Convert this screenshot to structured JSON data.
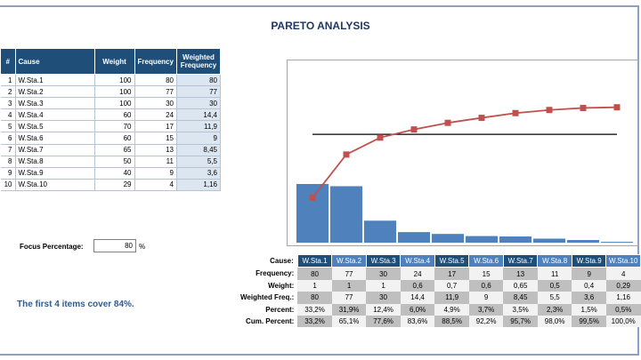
{
  "title": "PARETO ANALYSIS",
  "table": {
    "headers": [
      "#",
      "Cause",
      "Weight",
      "Frequency",
      "Weighted Frequency"
    ],
    "rows": [
      {
        "idx": "1",
        "cause": "W.Sta.1",
        "weight": "100",
        "frequency": "80",
        "weighted": "80"
      },
      {
        "idx": "2",
        "cause": "W.Sta.2",
        "weight": "100",
        "frequency": "77",
        "weighted": "77"
      },
      {
        "idx": "3",
        "cause": "W.Sta.3",
        "weight": "100",
        "frequency": "30",
        "weighted": "30"
      },
      {
        "idx": "4",
        "cause": "W.Sta.4",
        "weight": "60",
        "frequency": "24",
        "weighted": "14,4"
      },
      {
        "idx": "5",
        "cause": "W.Sta.5",
        "weight": "70",
        "frequency": "17",
        "weighted": "11,9"
      },
      {
        "idx": "6",
        "cause": "W.Sta.6",
        "weight": "60",
        "frequency": "15",
        "weighted": "9"
      },
      {
        "idx": "7",
        "cause": "W.Sta.7",
        "weight": "65",
        "frequency": "13",
        "weighted": "8,45"
      },
      {
        "idx": "8",
        "cause": "W.Sta.8",
        "weight": "50",
        "frequency": "11",
        "weighted": "5,5"
      },
      {
        "idx": "9",
        "cause": "W.Sta.9",
        "weight": "40",
        "frequency": "9",
        "weighted": "3,6"
      },
      {
        "idx": "10",
        "cause": "W.Sta.10",
        "weight": "29",
        "frequency": "4",
        "weighted": "1,16"
      }
    ]
  },
  "focus": {
    "label": "Focus Percentage:",
    "value": "80",
    "unit": "%"
  },
  "summary": "The first 4 items cover 84%.",
  "bottom": {
    "labels": {
      "cause": "Cause:",
      "frequency": "Frequency:",
      "weight": "Weight:",
      "weighted": "Weighted Freq.:",
      "percent": "Percent:",
      "cum": "Cum. Percent:"
    },
    "cause": [
      "W.Sta.1",
      "W.Sta.2",
      "W.Sta.3",
      "W.Sta.4",
      "W.Sta.5",
      "W.Sta.6",
      "W.Sta.7",
      "W.Sta.8",
      "W.Sta.9",
      "W.Sta.10"
    ],
    "frequency": [
      "80",
      "77",
      "30",
      "24",
      "17",
      "15",
      "13",
      "11",
      "9",
      "4"
    ],
    "weight": [
      "1",
      "1",
      "1",
      "0,6",
      "0,7",
      "0,6",
      "0,65",
      "0,5",
      "0,4",
      "0,29"
    ],
    "weighted": [
      "80",
      "77",
      "30",
      "14,4",
      "11,9",
      "9",
      "8,45",
      "5,5",
      "3,6",
      "1,16"
    ],
    "percent": [
      "33,2%",
      "31,9%",
      "12,4%",
      "6,0%",
      "4,9%",
      "3,7%",
      "3,5%",
      "2,3%",
      "1,5%",
      "0,5%"
    ],
    "cum": [
      "33,2%",
      "65,1%",
      "77,6%",
      "83,6%",
      "88,5%",
      "92,2%",
      "95,7%",
      "98,0%",
      "99,5%",
      "100,0%"
    ]
  },
  "chart_data": {
    "type": "bar",
    "categories": [
      "W.Sta.1",
      "W.Sta.2",
      "W.Sta.3",
      "W.Sta.4",
      "W.Sta.5",
      "W.Sta.6",
      "W.Sta.7",
      "W.Sta.8",
      "W.Sta.9",
      "W.Sta.10"
    ],
    "values": [
      80,
      77,
      30,
      14.4,
      11.9,
      9,
      8.45,
      5.5,
      3.6,
      1.16
    ],
    "cumulative_percent": [
      33.2,
      65.1,
      77.6,
      83.6,
      88.5,
      92.2,
      95.7,
      98.0,
      99.5,
      100.0
    ],
    "threshold_percent": 80,
    "ylim_bars": [
      0,
      240
    ],
    "ylim_percent": [
      0,
      130
    ],
    "colors": {
      "bars": "#4f81bd",
      "line": "#c0504d",
      "marker": "#c0504d",
      "threshold": "#000000"
    }
  }
}
